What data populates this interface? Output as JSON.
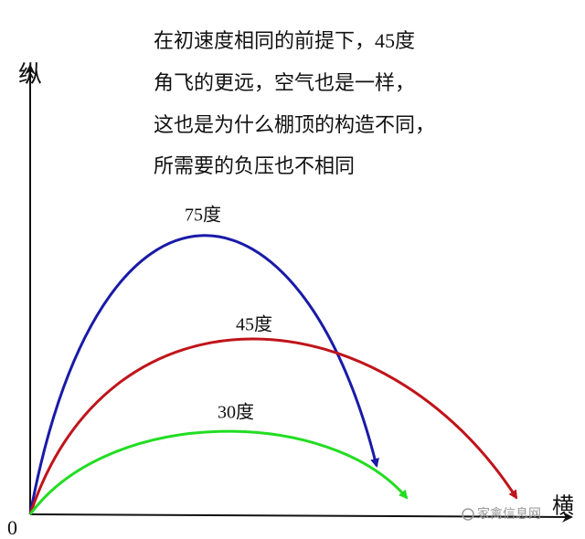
{
  "text_lines": [
    "在初速度相同的前提下，45度",
    "角飞的更远，空气也是一样，",
    "这也是为什么棚顶的构造不同，",
    "所需要的负压也不相同"
  ],
  "axes": {
    "y_label": "纵",
    "x_label": "横",
    "origin": "0"
  },
  "curves": [
    {
      "label": "75度"
    },
    {
      "label": "45度"
    },
    {
      "label": "30度"
    }
  ],
  "watermark": "家禽信息网"
}
